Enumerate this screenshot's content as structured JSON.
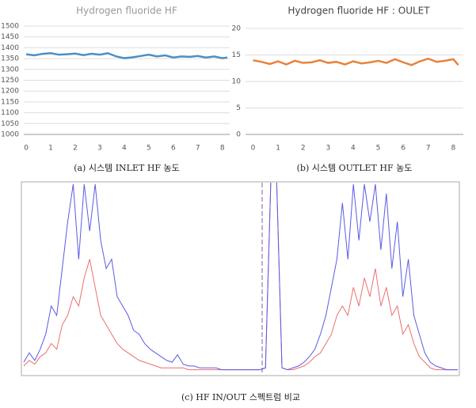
{
  "chart_data": [
    {
      "type": "line",
      "title": "Hydrogen fluoride HF",
      "caption": "(a) 시스템 INLET HF 농도",
      "x": [
        0,
        0.33,
        0.67,
        1,
        1.33,
        1.67,
        2,
        2.33,
        2.67,
        3,
        3.33,
        3.67,
        4,
        4.33,
        4.67,
        5,
        5.33,
        5.67,
        6,
        6.33,
        6.67,
        7,
        7.33,
        7.67,
        8,
        8.2
      ],
      "series": [
        {
          "color": "#4a8fc7",
          "values": [
            1370,
            1365,
            1372,
            1375,
            1368,
            1370,
            1373,
            1366,
            1372,
            1368,
            1375,
            1360,
            1352,
            1356,
            1362,
            1368,
            1360,
            1365,
            1355,
            1360,
            1358,
            1362,
            1355,
            1360,
            1352,
            1355
          ]
        }
      ],
      "xlim": [
        -0.1,
        8.3
      ],
      "xticks": [
        0,
        1,
        2,
        3,
        4,
        5,
        6,
        7,
        8
      ],
      "ylim": [
        1000,
        1500
      ],
      "yticks": [
        1000,
        1050,
        1100,
        1150,
        1200,
        1250,
        1300,
        1350,
        1400,
        1450,
        1500
      ],
      "grid": true
    },
    {
      "type": "line",
      "title": "Hydrogen fluoride HF : OULET",
      "caption": "(b) 시스템 OUTLET HF 농도",
      "x": [
        0,
        0.33,
        0.67,
        1,
        1.33,
        1.67,
        2,
        2.33,
        2.67,
        3,
        3.33,
        3.67,
        4,
        4.33,
        4.67,
        5,
        5.33,
        5.67,
        6,
        6.33,
        6.67,
        7,
        7.33,
        7.67,
        8,
        8.2
      ],
      "series": [
        {
          "color": "#e8833a",
          "values": [
            14,
            13.7,
            13.3,
            13.8,
            13.2,
            13.9,
            13.5,
            13.6,
            14,
            13.5,
            13.7,
            13.2,
            13.8,
            13.4,
            13.6,
            13.9,
            13.5,
            14.2,
            13.6,
            13.1,
            13.8,
            14.3,
            13.7,
            13.9,
            14.2,
            13.1
          ]
        }
      ],
      "xlim": [
        -0.3,
        8.4
      ],
      "xticks": [
        0,
        1,
        2,
        3,
        4,
        5,
        6,
        7,
        8
      ],
      "ylim": [
        0,
        20
      ],
      "yticks": [
        0,
        5,
        10,
        15,
        20
      ],
      "grid": true
    },
    {
      "type": "spectrum",
      "caption": "(c) HF IN/OUT 스펙트럼 비교",
      "ylim": [
        0,
        1
      ],
      "series": [
        {
          "color": "#5a5ae6",
          "values": [
            0.05,
            0.1,
            0.06,
            0.12,
            0.2,
            0.35,
            0.3,
            0.55,
            0.8,
            1.0,
            0.6,
            1.0,
            0.75,
            1.0,
            0.7,
            0.55,
            0.6,
            0.4,
            0.35,
            0.3,
            0.22,
            0.2,
            0.15,
            0.12,
            0.1,
            0.08,
            0.06,
            0.05,
            0.09,
            0.04,
            0.03,
            0.03,
            0.02,
            0.02,
            0.02,
            0.02,
            0.01,
            0.01,
            0.01,
            0.01,
            0.01,
            0.01,
            0.01,
            0.01,
            0.02,
            1.05,
            1.05,
            0.02,
            0.01,
            0.02,
            0.03,
            0.05,
            0.08,
            0.12,
            0.2,
            0.3,
            0.45,
            0.6,
            0.9,
            0.6,
            1.0,
            0.7,
            1.0,
            0.8,
            1.0,
            0.65,
            0.95,
            0.55,
            0.8,
            0.4,
            0.6,
            0.3,
            0.2,
            0.1,
            0.05,
            0.03,
            0.02,
            0.01,
            0.01,
            0.01
          ]
        },
        {
          "color": "#ec6f6f",
          "values": [
            0.03,
            0.06,
            0.04,
            0.08,
            0.1,
            0.15,
            0.12,
            0.25,
            0.3,
            0.4,
            0.35,
            0.5,
            0.6,
            0.45,
            0.3,
            0.25,
            0.2,
            0.15,
            0.12,
            0.1,
            0.08,
            0.06,
            0.05,
            0.04,
            0.03,
            0.02,
            0.02,
            0.02,
            0.02,
            0.02,
            0.01,
            0.01,
            0.01,
            0.01,
            0.01,
            0.01,
            0.01,
            0.01,
            0.01,
            0.01,
            0.01,
            0.01,
            0.01,
            0.01,
            0.02,
            1.05,
            1.05,
            0.02,
            0.01,
            0.01,
            0.02,
            0.03,
            0.05,
            0.08,
            0.1,
            0.15,
            0.2,
            0.3,
            0.35,
            0.3,
            0.45,
            0.35,
            0.5,
            0.4,
            0.55,
            0.35,
            0.45,
            0.3,
            0.35,
            0.2,
            0.25,
            0.15,
            0.08,
            0.05,
            0.02,
            0.01,
            0.01,
            0.01,
            0.01,
            0.01
          ]
        }
      ]
    }
  ]
}
